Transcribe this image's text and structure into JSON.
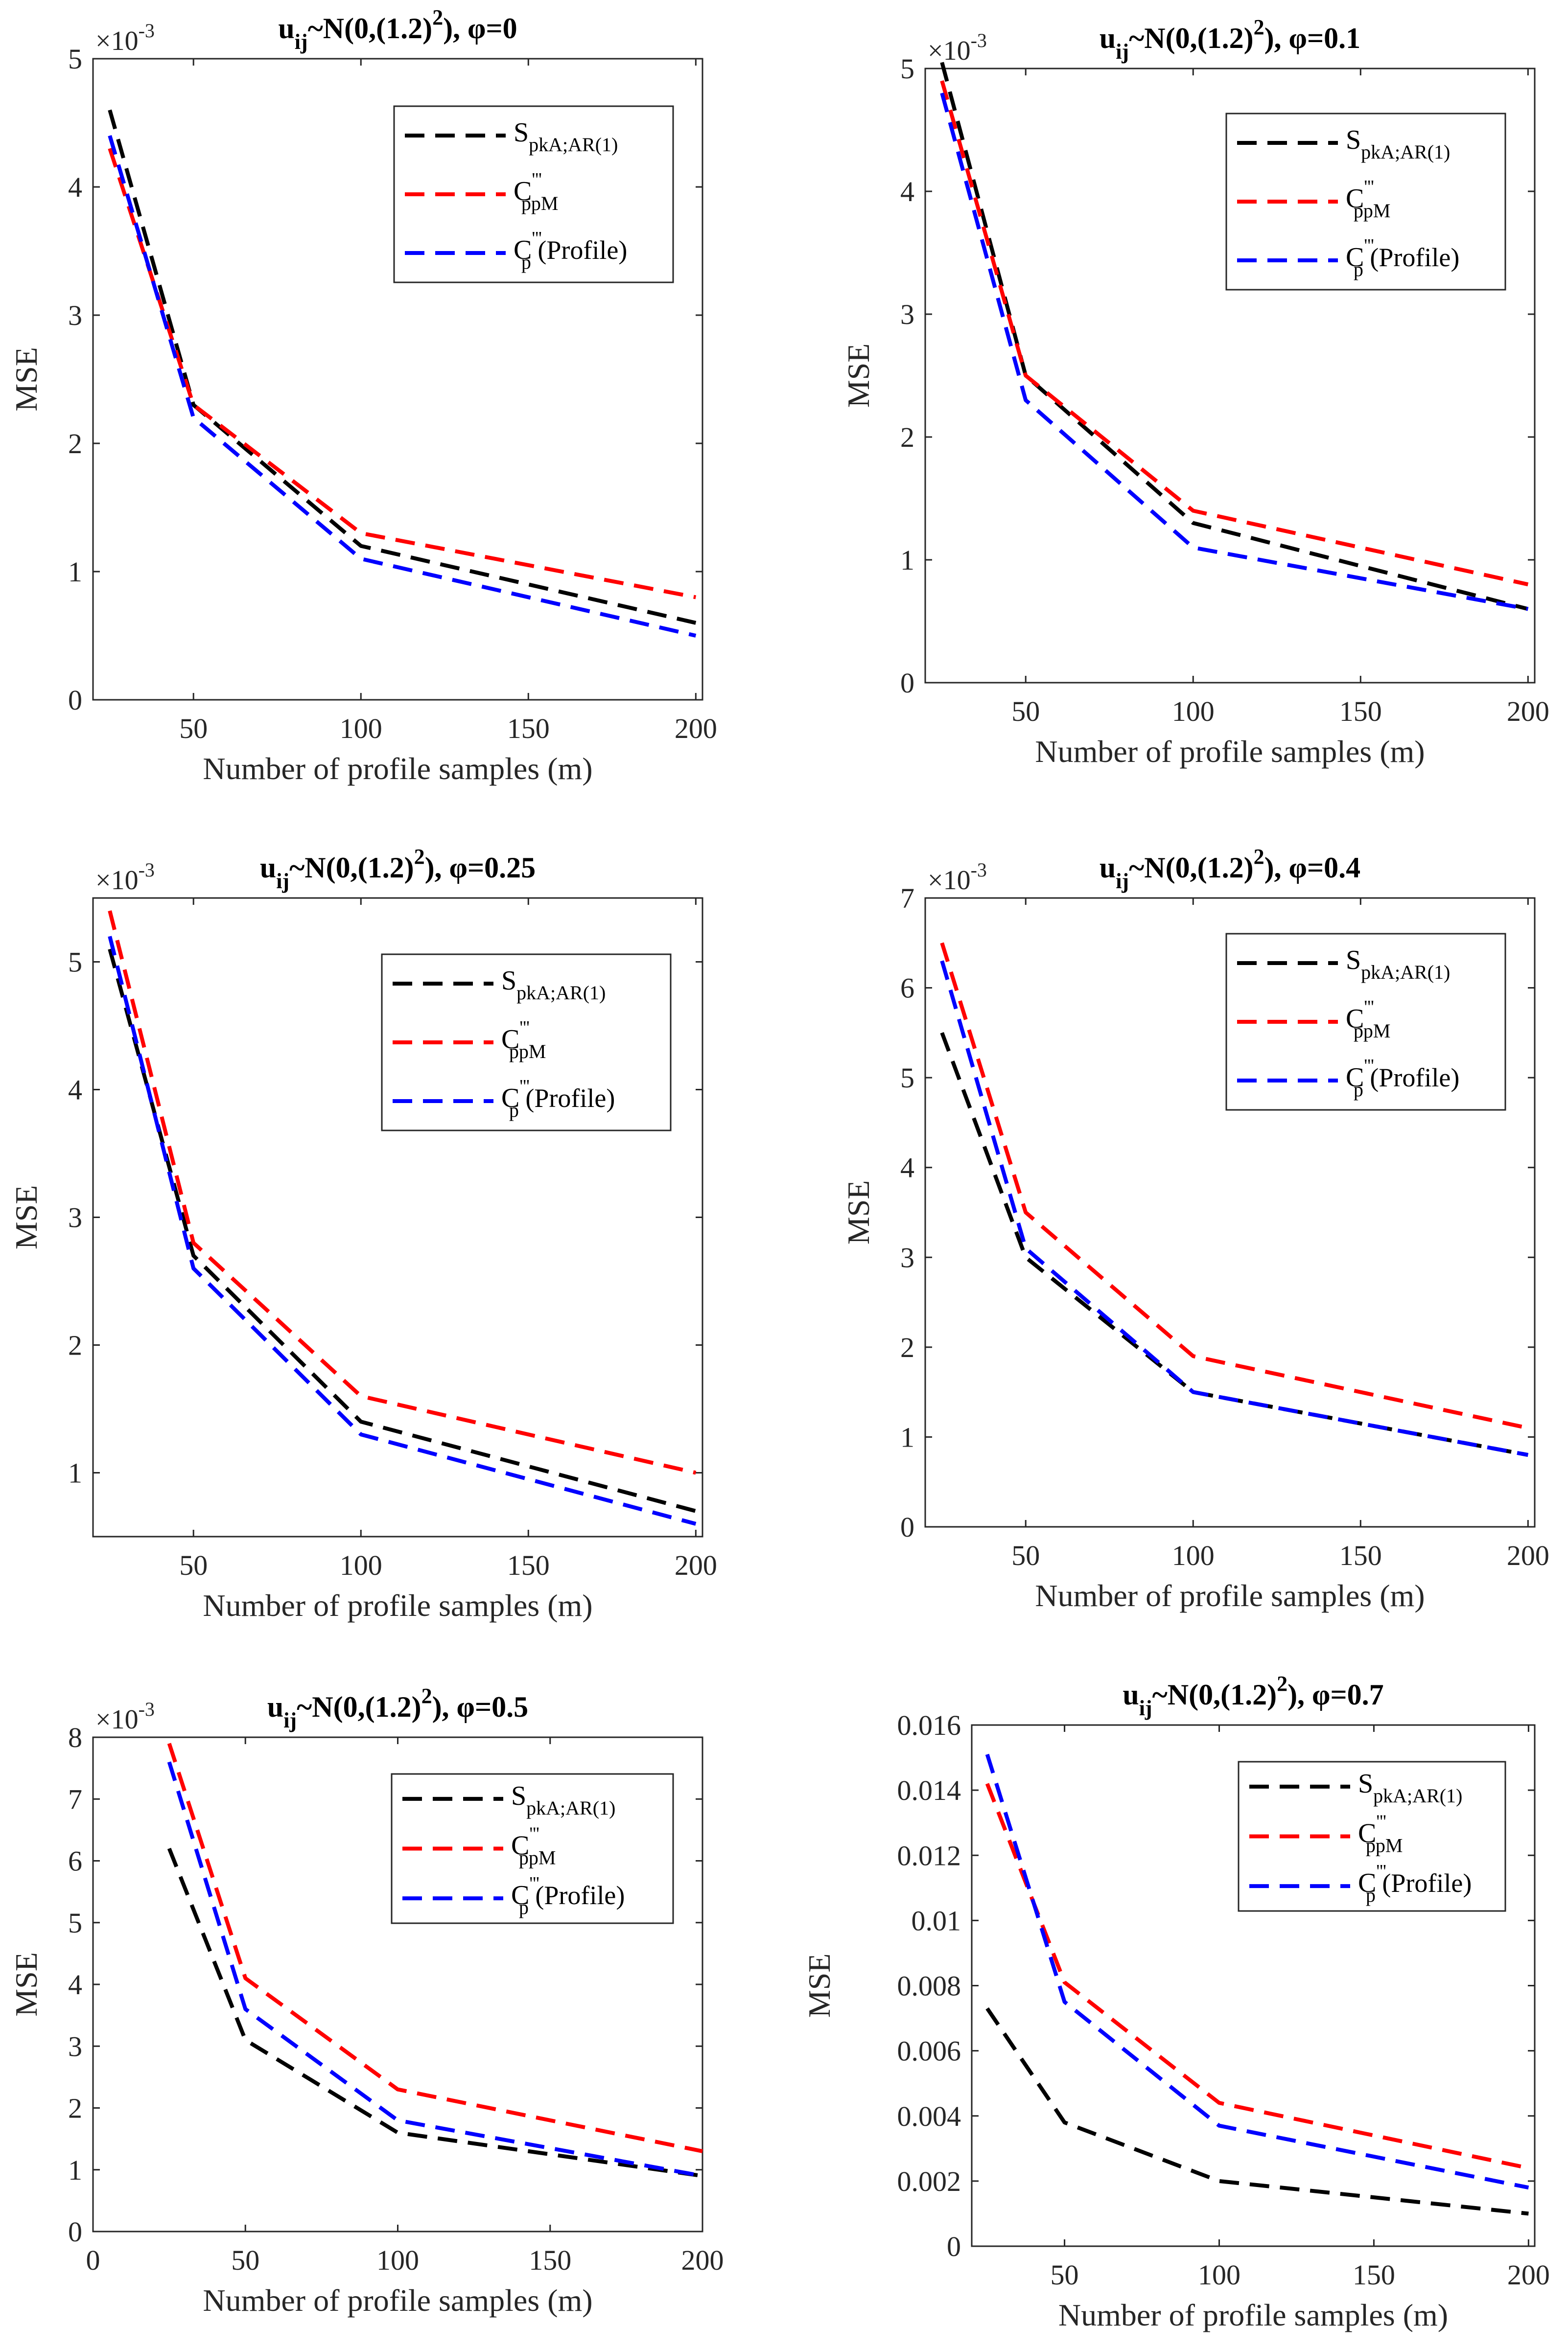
{
  "chart_data": [
    {
      "type": "line",
      "title": "u_ij~N(0,(1.2)^2), φ=0",
      "title_main": "u",
      "title_sub": "ij",
      "title_mid": "~N(0,(1.2)",
      "title_sup": "2",
      "title_end": "), φ=0",
      "xlabel": "Number of profile samples (m)",
      "ylabel": "MSE",
      "scale_label": "×10",
      "scale_exp": "-3",
      "xlim": [
        20,
        202
      ],
      "ylim": [
        0,
        5
      ],
      "xticks": [
        50,
        100,
        150,
        200
      ],
      "yticks": [
        0,
        1,
        2,
        3,
        4,
        5
      ],
      "ytick_labels": [
        "0",
        "1",
        "2",
        "3",
        "4",
        "5"
      ],
      "x": [
        25,
        50,
        100,
        200
      ],
      "series": [
        {
          "name": "S_pkA;AR(1)",
          "color": "#000000",
          "values": [
            4.6,
            2.3,
            1.2,
            0.6
          ]
        },
        {
          "name": "C'''_ppM",
          "color": "#ff0000",
          "values": [
            4.3,
            2.3,
            1.3,
            0.8
          ]
        },
        {
          "name": "C'''_p (Profile)",
          "color": "#0000ff",
          "values": [
            4.4,
            2.2,
            1.1,
            0.5
          ]
        }
      ]
    },
    {
      "type": "line",
      "title": "u_ij~N(0,(1.2)^2), φ=0.1",
      "title_main": "u",
      "title_sub": "ij",
      "title_mid": "~N(0,(1.2)",
      "title_sup": "2",
      "title_end": "), φ=0.1",
      "xlabel": "Number of profile samples (m)",
      "ylabel": "MSE",
      "scale_label": "×10",
      "scale_exp": "-3",
      "xlim": [
        20,
        202
      ],
      "ylim": [
        0,
        5
      ],
      "xticks": [
        50,
        100,
        150,
        200
      ],
      "yticks": [
        0,
        1,
        2,
        3,
        4,
        5
      ],
      "ytick_labels": [
        "0",
        "1",
        "2",
        "3",
        "4",
        "5"
      ],
      "x": [
        25,
        50,
        100,
        200
      ],
      "series": [
        {
          "name": "S_pkA;AR(1)",
          "color": "#000000",
          "values": [
            5.05,
            2.5,
            1.3,
            0.6
          ]
        },
        {
          "name": "C'''_ppM",
          "color": "#ff0000",
          "values": [
            4.9,
            2.5,
            1.4,
            0.8
          ]
        },
        {
          "name": "C'''_p (Profile)",
          "color": "#0000ff",
          "values": [
            4.8,
            2.3,
            1.1,
            0.6
          ]
        }
      ]
    },
    {
      "type": "line",
      "title": "u_ij~N(0,(1.2)^2), φ=0.25",
      "title_main": "u",
      "title_sub": "ij",
      "title_mid": "~N(0,(1.2)",
      "title_sup": "2",
      "title_end": "), φ=0.25",
      "xlabel": "Number of profile samples (m)",
      "ylabel": "MSE",
      "scale_label": "×10",
      "scale_exp": "-3",
      "xlim": [
        20,
        202
      ],
      "ylim": [
        0.5,
        5.5
      ],
      "xticks": [
        50,
        100,
        150,
        200
      ],
      "yticks": [
        1,
        2,
        3,
        4,
        5
      ],
      "ytick_labels": [
        "1",
        "2",
        "3",
        "4",
        "5"
      ],
      "x": [
        25,
        50,
        100,
        200
      ],
      "series": [
        {
          "name": "S_pkA;AR(1)",
          "color": "#000000",
          "values": [
            5.1,
            2.7,
            1.4,
            0.7
          ]
        },
        {
          "name": "C'''_ppM",
          "color": "#ff0000",
          "values": [
            5.4,
            2.8,
            1.6,
            1.0
          ]
        },
        {
          "name": "C'''_p (Profile)",
          "color": "#0000ff",
          "values": [
            5.2,
            2.6,
            1.3,
            0.6
          ]
        }
      ]
    },
    {
      "type": "line",
      "title": "u_ij~N(0,(1.2)^2), φ=0.4",
      "title_main": "u",
      "title_sub": "ij",
      "title_mid": "~N(0,(1.2)",
      "title_sup": "2",
      "title_end": "), φ=0.4",
      "xlabel": "Number of profile samples (m)",
      "ylabel": "MSE",
      "scale_label": "×10",
      "scale_exp": "-3",
      "xlim": [
        20,
        202
      ],
      "ylim": [
        0,
        7
      ],
      "xticks": [
        50,
        100,
        150,
        200
      ],
      "yticks": [
        0,
        1,
        2,
        3,
        4,
        5,
        6,
        7
      ],
      "ytick_labels": [
        "0",
        "1",
        "2",
        "3",
        "4",
        "5",
        "6",
        "7"
      ],
      "x": [
        25,
        50,
        100,
        200
      ],
      "series": [
        {
          "name": "S_pkA;AR(1)",
          "color": "#000000",
          "values": [
            5.5,
            3.0,
            1.5,
            0.8
          ]
        },
        {
          "name": "C'''_ppM",
          "color": "#ff0000",
          "values": [
            6.5,
            3.5,
            1.9,
            1.1
          ]
        },
        {
          "name": "C'''_p (Profile)",
          "color": "#0000ff",
          "values": [
            6.3,
            3.1,
            1.5,
            0.8
          ]
        }
      ]
    },
    {
      "type": "line",
      "title": "u_ij~N(0,(1.2)^2), φ=0.5",
      "title_main": "u",
      "title_sub": "ij",
      "title_mid": "~N(0,(1.2)",
      "title_sup": "2",
      "title_end": "), φ=0.5",
      "xlabel": "Number of profile samples (m)",
      "ylabel": "MSE",
      "scale_label": "×10",
      "scale_exp": "-3",
      "xlim": [
        0,
        200
      ],
      "ylim": [
        0,
        8
      ],
      "xticks": [
        0,
        50,
        100,
        150,
        200
      ],
      "yticks": [
        0,
        1,
        2,
        3,
        4,
        5,
        6,
        7,
        8
      ],
      "ytick_labels": [
        "0",
        "1",
        "2",
        "3",
        "4",
        "5",
        "6",
        "7",
        "8"
      ],
      "x": [
        25,
        50,
        100,
        200
      ],
      "series": [
        {
          "name": "S_pkA;AR(1)",
          "color": "#000000",
          "values": [
            6.2,
            3.1,
            1.6,
            0.9
          ]
        },
        {
          "name": "C'''_ppM",
          "color": "#ff0000",
          "values": [
            7.9,
            4.1,
            2.3,
            1.3
          ]
        },
        {
          "name": "C'''_p (Profile)",
          "color": "#0000ff",
          "values": [
            7.6,
            3.6,
            1.8,
            0.9
          ]
        }
      ]
    },
    {
      "type": "line",
      "title": "u_ij~N(0,(1.2)^2), φ=0.7",
      "title_main": "u",
      "title_sub": "ij",
      "title_mid": "~N(0,(1.2)",
      "title_sup": "2",
      "title_end": "), φ=0.7",
      "xlabel": "Number of profile samples (m)",
      "ylabel": "MSE",
      "scale_label": "",
      "scale_exp": "",
      "xlim": [
        20,
        202
      ],
      "ylim": [
        0,
        0.016
      ],
      "xticks": [
        50,
        100,
        150,
        200
      ],
      "yticks": [
        0,
        0.002,
        0.004,
        0.006,
        0.008,
        0.01,
        0.012,
        0.014,
        0.016
      ],
      "ytick_labels": [
        "0",
        "0.002",
        "0.004",
        "0.006",
        "0.008",
        "0.01",
        "0.012",
        "0.014",
        "0.016"
      ],
      "x": [
        25,
        50,
        100,
        200
      ],
      "series": [
        {
          "name": "S_pkA;AR(1)",
          "color": "#000000",
          "values": [
            0.0073,
            0.0038,
            0.002,
            0.001
          ]
        },
        {
          "name": "C'''_ppM",
          "color": "#ff0000",
          "values": [
            0.0142,
            0.0081,
            0.0044,
            0.0024
          ]
        },
        {
          "name": "C'''_p (Profile)",
          "color": "#0000ff",
          "values": [
            0.0151,
            0.0075,
            0.0037,
            0.0018
          ]
        }
      ]
    }
  ],
  "legend": [
    {
      "base": "S",
      "prime": "",
      "sub": "pkA;AR(1)",
      "suffix": ""
    },
    {
      "base": "C",
      "prime": "'''",
      "sub": "ppM",
      "suffix": ""
    },
    {
      "base": "C",
      "prime": "'''",
      "sub": "p",
      "suffix": " (Profile)"
    }
  ]
}
